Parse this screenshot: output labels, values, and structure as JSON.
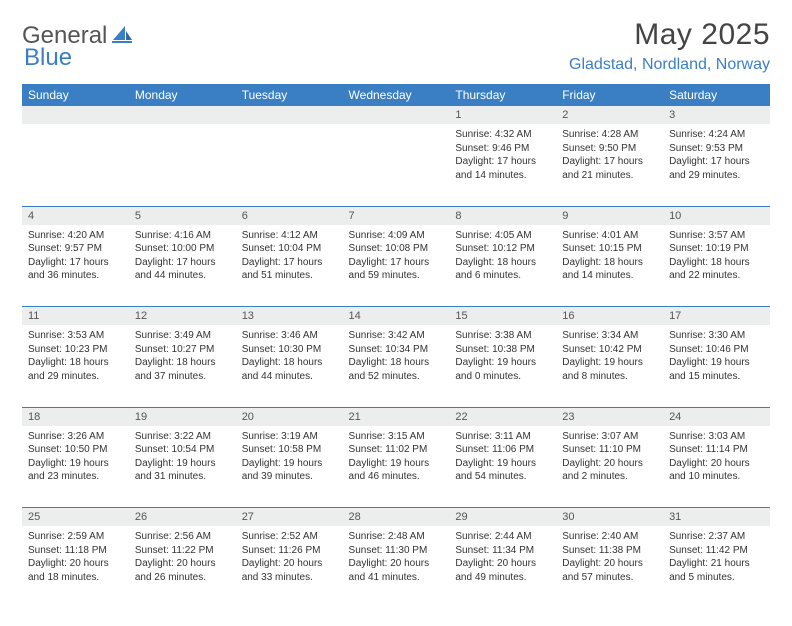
{
  "logo": {
    "general": "General",
    "blue": "Blue"
  },
  "header": {
    "title": "May 2025",
    "location": "Gladstad, Nordland, Norway"
  },
  "colors": {
    "accent": "#3a7fc4",
    "header_bg": "#3a7fc4",
    "daynum_bg": "#eceded",
    "text": "#333333",
    "border": "#3a7fc4"
  },
  "weekdays": [
    "Sunday",
    "Monday",
    "Tuesday",
    "Wednesday",
    "Thursday",
    "Friday",
    "Saturday"
  ],
  "weeks": [
    {
      "nums": [
        "",
        "",
        "",
        "",
        "1",
        "2",
        "3"
      ],
      "cells": [
        {
          "sunrise": "",
          "sunset": "",
          "daylight": ""
        },
        {
          "sunrise": "",
          "sunset": "",
          "daylight": ""
        },
        {
          "sunrise": "",
          "sunset": "",
          "daylight": ""
        },
        {
          "sunrise": "",
          "sunset": "",
          "daylight": ""
        },
        {
          "sunrise": "Sunrise: 4:32 AM",
          "sunset": "Sunset: 9:46 PM",
          "daylight": "Daylight: 17 hours and 14 minutes."
        },
        {
          "sunrise": "Sunrise: 4:28 AM",
          "sunset": "Sunset: 9:50 PM",
          "daylight": "Daylight: 17 hours and 21 minutes."
        },
        {
          "sunrise": "Sunrise: 4:24 AM",
          "sunset": "Sunset: 9:53 PM",
          "daylight": "Daylight: 17 hours and 29 minutes."
        }
      ]
    },
    {
      "nums": [
        "4",
        "5",
        "6",
        "7",
        "8",
        "9",
        "10"
      ],
      "cells": [
        {
          "sunrise": "Sunrise: 4:20 AM",
          "sunset": "Sunset: 9:57 PM",
          "daylight": "Daylight: 17 hours and 36 minutes."
        },
        {
          "sunrise": "Sunrise: 4:16 AM",
          "sunset": "Sunset: 10:00 PM",
          "daylight": "Daylight: 17 hours and 44 minutes."
        },
        {
          "sunrise": "Sunrise: 4:12 AM",
          "sunset": "Sunset: 10:04 PM",
          "daylight": "Daylight: 17 hours and 51 minutes."
        },
        {
          "sunrise": "Sunrise: 4:09 AM",
          "sunset": "Sunset: 10:08 PM",
          "daylight": "Daylight: 17 hours and 59 minutes."
        },
        {
          "sunrise": "Sunrise: 4:05 AM",
          "sunset": "Sunset: 10:12 PM",
          "daylight": "Daylight: 18 hours and 6 minutes."
        },
        {
          "sunrise": "Sunrise: 4:01 AM",
          "sunset": "Sunset: 10:15 PM",
          "daylight": "Daylight: 18 hours and 14 minutes."
        },
        {
          "sunrise": "Sunrise: 3:57 AM",
          "sunset": "Sunset: 10:19 PM",
          "daylight": "Daylight: 18 hours and 22 minutes."
        }
      ]
    },
    {
      "nums": [
        "11",
        "12",
        "13",
        "14",
        "15",
        "16",
        "17"
      ],
      "cells": [
        {
          "sunrise": "Sunrise: 3:53 AM",
          "sunset": "Sunset: 10:23 PM",
          "daylight": "Daylight: 18 hours and 29 minutes."
        },
        {
          "sunrise": "Sunrise: 3:49 AM",
          "sunset": "Sunset: 10:27 PM",
          "daylight": "Daylight: 18 hours and 37 minutes."
        },
        {
          "sunrise": "Sunrise: 3:46 AM",
          "sunset": "Sunset: 10:30 PM",
          "daylight": "Daylight: 18 hours and 44 minutes."
        },
        {
          "sunrise": "Sunrise: 3:42 AM",
          "sunset": "Sunset: 10:34 PM",
          "daylight": "Daylight: 18 hours and 52 minutes."
        },
        {
          "sunrise": "Sunrise: 3:38 AM",
          "sunset": "Sunset: 10:38 PM",
          "daylight": "Daylight: 19 hours and 0 minutes."
        },
        {
          "sunrise": "Sunrise: 3:34 AM",
          "sunset": "Sunset: 10:42 PM",
          "daylight": "Daylight: 19 hours and 8 minutes."
        },
        {
          "sunrise": "Sunrise: 3:30 AM",
          "sunset": "Sunset: 10:46 PM",
          "daylight": "Daylight: 19 hours and 15 minutes."
        }
      ]
    },
    {
      "nums": [
        "18",
        "19",
        "20",
        "21",
        "22",
        "23",
        "24"
      ],
      "cells": [
        {
          "sunrise": "Sunrise: 3:26 AM",
          "sunset": "Sunset: 10:50 PM",
          "daylight": "Daylight: 19 hours and 23 minutes."
        },
        {
          "sunrise": "Sunrise: 3:22 AM",
          "sunset": "Sunset: 10:54 PM",
          "daylight": "Daylight: 19 hours and 31 minutes."
        },
        {
          "sunrise": "Sunrise: 3:19 AM",
          "sunset": "Sunset: 10:58 PM",
          "daylight": "Daylight: 19 hours and 39 minutes."
        },
        {
          "sunrise": "Sunrise: 3:15 AM",
          "sunset": "Sunset: 11:02 PM",
          "daylight": "Daylight: 19 hours and 46 minutes."
        },
        {
          "sunrise": "Sunrise: 3:11 AM",
          "sunset": "Sunset: 11:06 PM",
          "daylight": "Daylight: 19 hours and 54 minutes."
        },
        {
          "sunrise": "Sunrise: 3:07 AM",
          "sunset": "Sunset: 11:10 PM",
          "daylight": "Daylight: 20 hours and 2 minutes."
        },
        {
          "sunrise": "Sunrise: 3:03 AM",
          "sunset": "Sunset: 11:14 PM",
          "daylight": "Daylight: 20 hours and 10 minutes."
        }
      ]
    },
    {
      "nums": [
        "25",
        "26",
        "27",
        "28",
        "29",
        "30",
        "31"
      ],
      "cells": [
        {
          "sunrise": "Sunrise: 2:59 AM",
          "sunset": "Sunset: 11:18 PM",
          "daylight": "Daylight: 20 hours and 18 minutes."
        },
        {
          "sunrise": "Sunrise: 2:56 AM",
          "sunset": "Sunset: 11:22 PM",
          "daylight": "Daylight: 20 hours and 26 minutes."
        },
        {
          "sunrise": "Sunrise: 2:52 AM",
          "sunset": "Sunset: 11:26 PM",
          "daylight": "Daylight: 20 hours and 33 minutes."
        },
        {
          "sunrise": "Sunrise: 2:48 AM",
          "sunset": "Sunset: 11:30 PM",
          "daylight": "Daylight: 20 hours and 41 minutes."
        },
        {
          "sunrise": "Sunrise: 2:44 AM",
          "sunset": "Sunset: 11:34 PM",
          "daylight": "Daylight: 20 hours and 49 minutes."
        },
        {
          "sunrise": "Sunrise: 2:40 AM",
          "sunset": "Sunset: 11:38 PM",
          "daylight": "Daylight: 20 hours and 57 minutes."
        },
        {
          "sunrise": "Sunrise: 2:37 AM",
          "sunset": "Sunset: 11:42 PM",
          "daylight": "Daylight: 21 hours and 5 minutes."
        }
      ]
    }
  ]
}
